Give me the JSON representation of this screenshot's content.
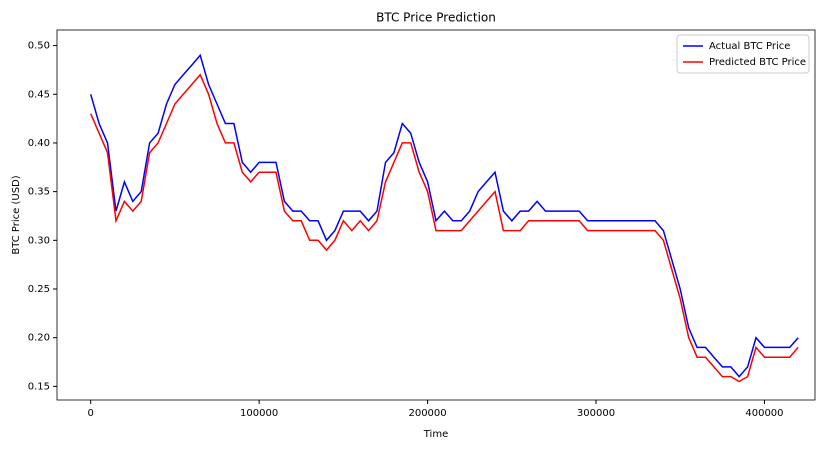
{
  "chart_data": {
    "type": "line",
    "title": "BTC Price Prediction",
    "xlabel": "Time",
    "ylabel": "BTC Price (USD)",
    "x": [
      0,
      5000,
      10000,
      15000,
      20000,
      25000,
      30000,
      35000,
      40000,
      45000,
      50000,
      55000,
      60000,
      65000,
      70000,
      75000,
      80000,
      85000,
      90000,
      95000,
      100000,
      105000,
      110000,
      115000,
      120000,
      125000,
      130000,
      135000,
      140000,
      145000,
      150000,
      155000,
      160000,
      165000,
      170000,
      175000,
      180000,
      185000,
      190000,
      195000,
      200000,
      205000,
      210000,
      215000,
      220000,
      225000,
      230000,
      235000,
      240000,
      245000,
      250000,
      255000,
      260000,
      265000,
      270000,
      275000,
      280000,
      285000,
      290000,
      295000,
      300000,
      305000,
      310000,
      315000,
      320000,
      325000,
      330000,
      335000,
      340000,
      345000,
      350000,
      355000,
      360000,
      365000,
      370000,
      375000,
      380000,
      385000,
      390000,
      395000,
      400000,
      405000,
      410000,
      415000,
      420000
    ],
    "series": [
      {
        "name": "Actual BTC Price",
        "color": "#0000ff",
        "values": [
          0.45,
          0.42,
          0.4,
          0.33,
          0.36,
          0.34,
          0.35,
          0.4,
          0.41,
          0.44,
          0.46,
          0.47,
          0.48,
          0.49,
          0.46,
          0.44,
          0.42,
          0.42,
          0.38,
          0.37,
          0.38,
          0.38,
          0.38,
          0.34,
          0.33,
          0.33,
          0.32,
          0.32,
          0.3,
          0.31,
          0.33,
          0.33,
          0.33,
          0.32,
          0.33,
          0.38,
          0.39,
          0.42,
          0.41,
          0.38,
          0.36,
          0.32,
          0.33,
          0.32,
          0.32,
          0.33,
          0.35,
          0.36,
          0.37,
          0.33,
          0.32,
          0.33,
          0.33,
          0.34,
          0.33,
          0.33,
          0.33,
          0.33,
          0.33,
          0.32,
          0.32,
          0.32,
          0.32,
          0.32,
          0.32,
          0.32,
          0.32,
          0.32,
          0.31,
          0.28,
          0.25,
          0.21,
          0.19,
          0.19,
          0.18,
          0.17,
          0.17,
          0.16,
          0.17,
          0.2,
          0.19,
          0.19,
          0.19,
          0.19,
          0.2
        ]
      },
      {
        "name": "Predicted BTC Price",
        "color": "#ff0000",
        "values": [
          0.43,
          0.41,
          0.39,
          0.32,
          0.34,
          0.33,
          0.34,
          0.39,
          0.4,
          0.42,
          0.44,
          0.45,
          0.46,
          0.47,
          0.45,
          0.42,
          0.4,
          0.4,
          0.37,
          0.36,
          0.37,
          0.37,
          0.37,
          0.33,
          0.32,
          0.32,
          0.3,
          0.3,
          0.29,
          0.3,
          0.32,
          0.31,
          0.32,
          0.31,
          0.32,
          0.36,
          0.38,
          0.4,
          0.4,
          0.37,
          0.35,
          0.31,
          0.31,
          0.31,
          0.31,
          0.32,
          0.33,
          0.34,
          0.35,
          0.31,
          0.31,
          0.31,
          0.32,
          0.32,
          0.32,
          0.32,
          0.32,
          0.32,
          0.32,
          0.31,
          0.31,
          0.31,
          0.31,
          0.31,
          0.31,
          0.31,
          0.31,
          0.31,
          0.3,
          0.27,
          0.24,
          0.2,
          0.18,
          0.18,
          0.17,
          0.16,
          0.16,
          0.155,
          0.16,
          0.19,
          0.18,
          0.18,
          0.18,
          0.18,
          0.19
        ]
      }
    ],
    "xlim": [
      -20000,
      430000
    ],
    "ylim": [
      0.136,
      0.516
    ],
    "xticks": [
      0,
      100000,
      200000,
      300000,
      400000
    ],
    "yticks": [
      {
        "value": 0.15,
        "label": "0.15"
      },
      {
        "value": 0.2,
        "label": "0.20"
      },
      {
        "value": 0.25,
        "label": "0.25"
      },
      {
        "value": 0.3,
        "label": "0.30"
      },
      {
        "value": 0.35,
        "label": "0.35"
      },
      {
        "value": 0.4,
        "label": "0.40"
      },
      {
        "value": 0.45,
        "label": "0.45"
      },
      {
        "value": 0.5,
        "label": "0.50"
      }
    ],
    "legend": "upper right"
  }
}
